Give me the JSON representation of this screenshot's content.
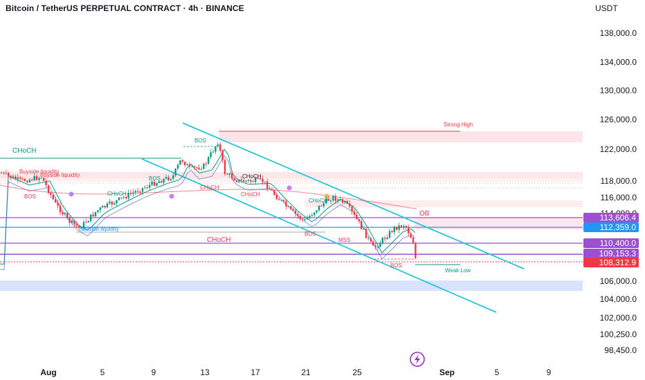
{
  "header": {
    "title": "Bitcoin / TetherUS PERPETUAL CONTRACT · 4h · BINANCE",
    "currency": "USDT"
  },
  "chart_data": {
    "type": "candlestick",
    "y_ticks": [
      "138,000.0",
      "134,000.0",
      "130,000.0",
      "126,000.0",
      "122,000.0",
      "118,000.0",
      "116,000.0",
      "114,000.0",
      "106,000.0",
      "104,000.0",
      "102,000.0",
      "100,250.0",
      "98,450.0"
    ],
    "x_ticks": [
      "Aug",
      "5",
      "9",
      "13",
      "17",
      "21",
      "25",
      "Sep",
      "5",
      "9"
    ],
    "price_badges": [
      {
        "label": "113,606.4",
        "color": "#9c4fd0"
      },
      {
        "label": "112,359.0",
        "color": "#2196f3"
      },
      {
        "label": "110,400.0",
        "color": "#9c4fd0"
      },
      {
        "label": "109,153.3",
        "color": "#9c4fd0"
      },
      {
        "label": "108,312.9",
        "color": "#f23645"
      }
    ],
    "annotations": [
      {
        "text": "Strong High",
        "color": "#f23645"
      },
      {
        "text": "CHoCH",
        "color": "#089981"
      },
      {
        "text": "Buyside liquidity",
        "color": "#f23645"
      },
      {
        "text": "Buyside liquidity",
        "color": "#f23645"
      },
      {
        "text": "BOS",
        "color": "#f23645"
      },
      {
        "text": "BOS",
        "color": "#089981"
      },
      {
        "text": "BOS",
        "color": "#089981"
      },
      {
        "text": "CHoCH",
        "color": "#089981"
      },
      {
        "text": "CHoCH",
        "color": "#f23645"
      },
      {
        "text": "CHoCH",
        "color": "#131722"
      },
      {
        "text": "CHoCH",
        "color": "#089981"
      },
      {
        "text": "CHoCH",
        "color": "#f23645"
      },
      {
        "text": "Sellside liquidity",
        "color": "#2196f3"
      },
      {
        "text": "BOS",
        "color": "#f23645"
      },
      {
        "text": "MSS",
        "color": "#f23645"
      },
      {
        "text": "CHoCH",
        "color": "#f23645"
      },
      {
        "text": "OB",
        "color": "#f23645"
      },
      {
        "text": "BOS",
        "color": "#f23645"
      },
      {
        "text": "Weak Low",
        "color": "#089981"
      }
    ],
    "colors": {
      "up": "#089981",
      "down": "#f23645",
      "channel": "#26c6da",
      "purple": "#9c4fd0",
      "blue": "#2196f3"
    }
  }
}
